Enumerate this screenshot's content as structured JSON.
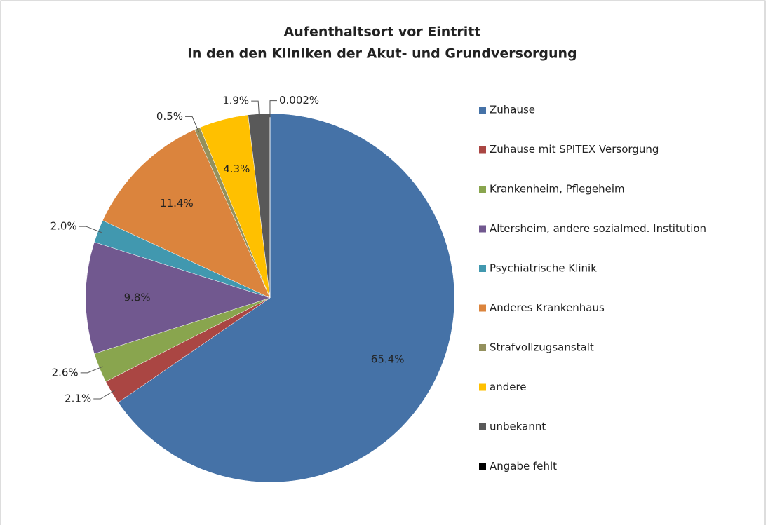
{
  "chart_data": {
    "type": "pie",
    "title": [
      "Aufenthaltsort vor Eintritt",
      "in den den Kliniken der Akut- und Grundversorgung"
    ],
    "categories": [
      "Zuhause",
      "Zuhause mit SPITEX Versorgung",
      "Krankenheim, Pflegeheim",
      "Altersheim, andere sozialmed. Institution",
      "Psychiatrische Klinik",
      "Anderes Krankenhaus",
      "Strafvollzugsanstalt",
      "andere",
      "unbekannt",
      "Angabe fehlt"
    ],
    "values": [
      65.4,
      2.1,
      2.6,
      9.8,
      2,
      11.4,
      0.5,
      4.3,
      1.9,
      0.002
    ],
    "value_labels": [
      "65.4%",
      "2.1%",
      "2.6%",
      "9.8%",
      "2.0%",
      "11.4%",
      "0.5%",
      "4.3%",
      "1.9%",
      "0.002%"
    ],
    "colors": [
      "#4572a7",
      "#aa4643",
      "#89a54e",
      "#71588f",
      "#4198af",
      "#db843d",
      "#93905d",
      "#ffc000",
      "#595959",
      "#000000"
    ],
    "legend": "right"
  }
}
